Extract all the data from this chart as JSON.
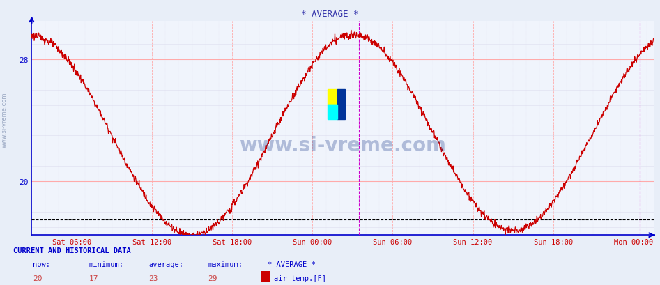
{
  "title": "* AVERAGE *",
  "title_color": "#3333aa",
  "bg_color": "#e8eef8",
  "plot_bg_color": "#f0f4fc",
  "line_color": "#cc0000",
  "line_width": 0.9,
  "watermark_text": "www.si-vreme.com",
  "watermark_color": "#1a3a8a",
  "sidebar_text": "www.si-vreme.com",
  "sidebar_color": "#7788aa",
  "ylim_low": 16.5,
  "ylim_high": 30.5,
  "ytick_major": [
    20,
    28
  ],
  "x_labels": [
    "Sat 06:00",
    "Sat 12:00",
    "Sat 18:00",
    "Sun 00:00",
    "Sun 06:00",
    "Sun 12:00",
    "Sun 18:00",
    "Mon 00:00"
  ],
  "x_tick_pos": [
    6,
    12,
    18,
    24,
    30,
    36,
    42,
    48
  ],
  "x_label_color": "#cc0000",
  "axis_color": "#0000cc",
  "grid_major_color": "#ffaaaa",
  "grid_minor_color": "#ddddee",
  "dashed_line_y": 17.5,
  "dashed_line_color": "#000000",
  "vline1_x": 27.5,
  "vline2_x": 48.5,
  "vline_color": "#cc00cc",
  "xlim_low": 3,
  "xlim_high": 49.5,
  "footer_text1": "CURRENT AND HISTORICAL DATA",
  "footer_col1": "now:",
  "footer_col2": "minimum:",
  "footer_col3": "average:",
  "footer_col4": "maximum:",
  "footer_col5": "* AVERAGE *",
  "footer_val1": "20",
  "footer_val2": "17",
  "footer_val3": "23",
  "footer_val4": "29",
  "footer_series": "air temp.[F]",
  "footer_color": "#0000cc",
  "footer_val_color": "#cc4444",
  "legend_color": "#cc0000"
}
